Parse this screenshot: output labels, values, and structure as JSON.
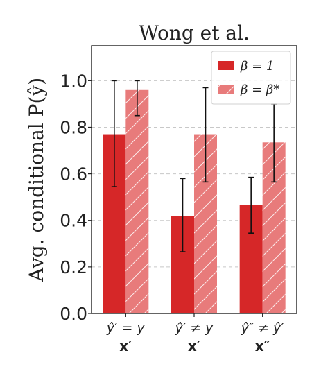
{
  "chart_data": {
    "type": "bar",
    "title": "Wong et al.",
    "ylabel": "Avg. conditional P(ŷ)",
    "xlabel": "",
    "ylim": [
      0.0,
      1.15
    ],
    "yticks": [
      0.0,
      0.2,
      0.4,
      0.6,
      0.8,
      1.0
    ],
    "ytick_labels": [
      "0.0",
      "0.2",
      "0.4",
      "0.6",
      "0.8",
      "1.0"
    ],
    "grid": "horizontal dashed",
    "legend_position": "top-right",
    "categories": [
      {
        "condition": "ŷ′ = y",
        "input": "x′"
      },
      {
        "condition": "ŷ′ ≠ y",
        "input": "x′"
      },
      {
        "condition": "ŷ″ ≠ ŷ′",
        "input": "x″"
      }
    ],
    "series": [
      {
        "name": "β = 1",
        "color": "#d62728",
        "hatch": false,
        "values": [
          0.77,
          0.42,
          0.465
        ],
        "err_low": [
          0.545,
          0.265,
          0.345
        ],
        "err_high": [
          1.0,
          0.58,
          0.585
        ]
      },
      {
        "name": "β = β*",
        "color": "#e87b7b",
        "hatch": true,
        "values": [
          0.96,
          0.77,
          0.735
        ],
        "err_low": [
          0.85,
          0.565,
          0.565
        ],
        "err_high": [
          1.0,
          0.97,
          0.9
        ]
      }
    ]
  }
}
